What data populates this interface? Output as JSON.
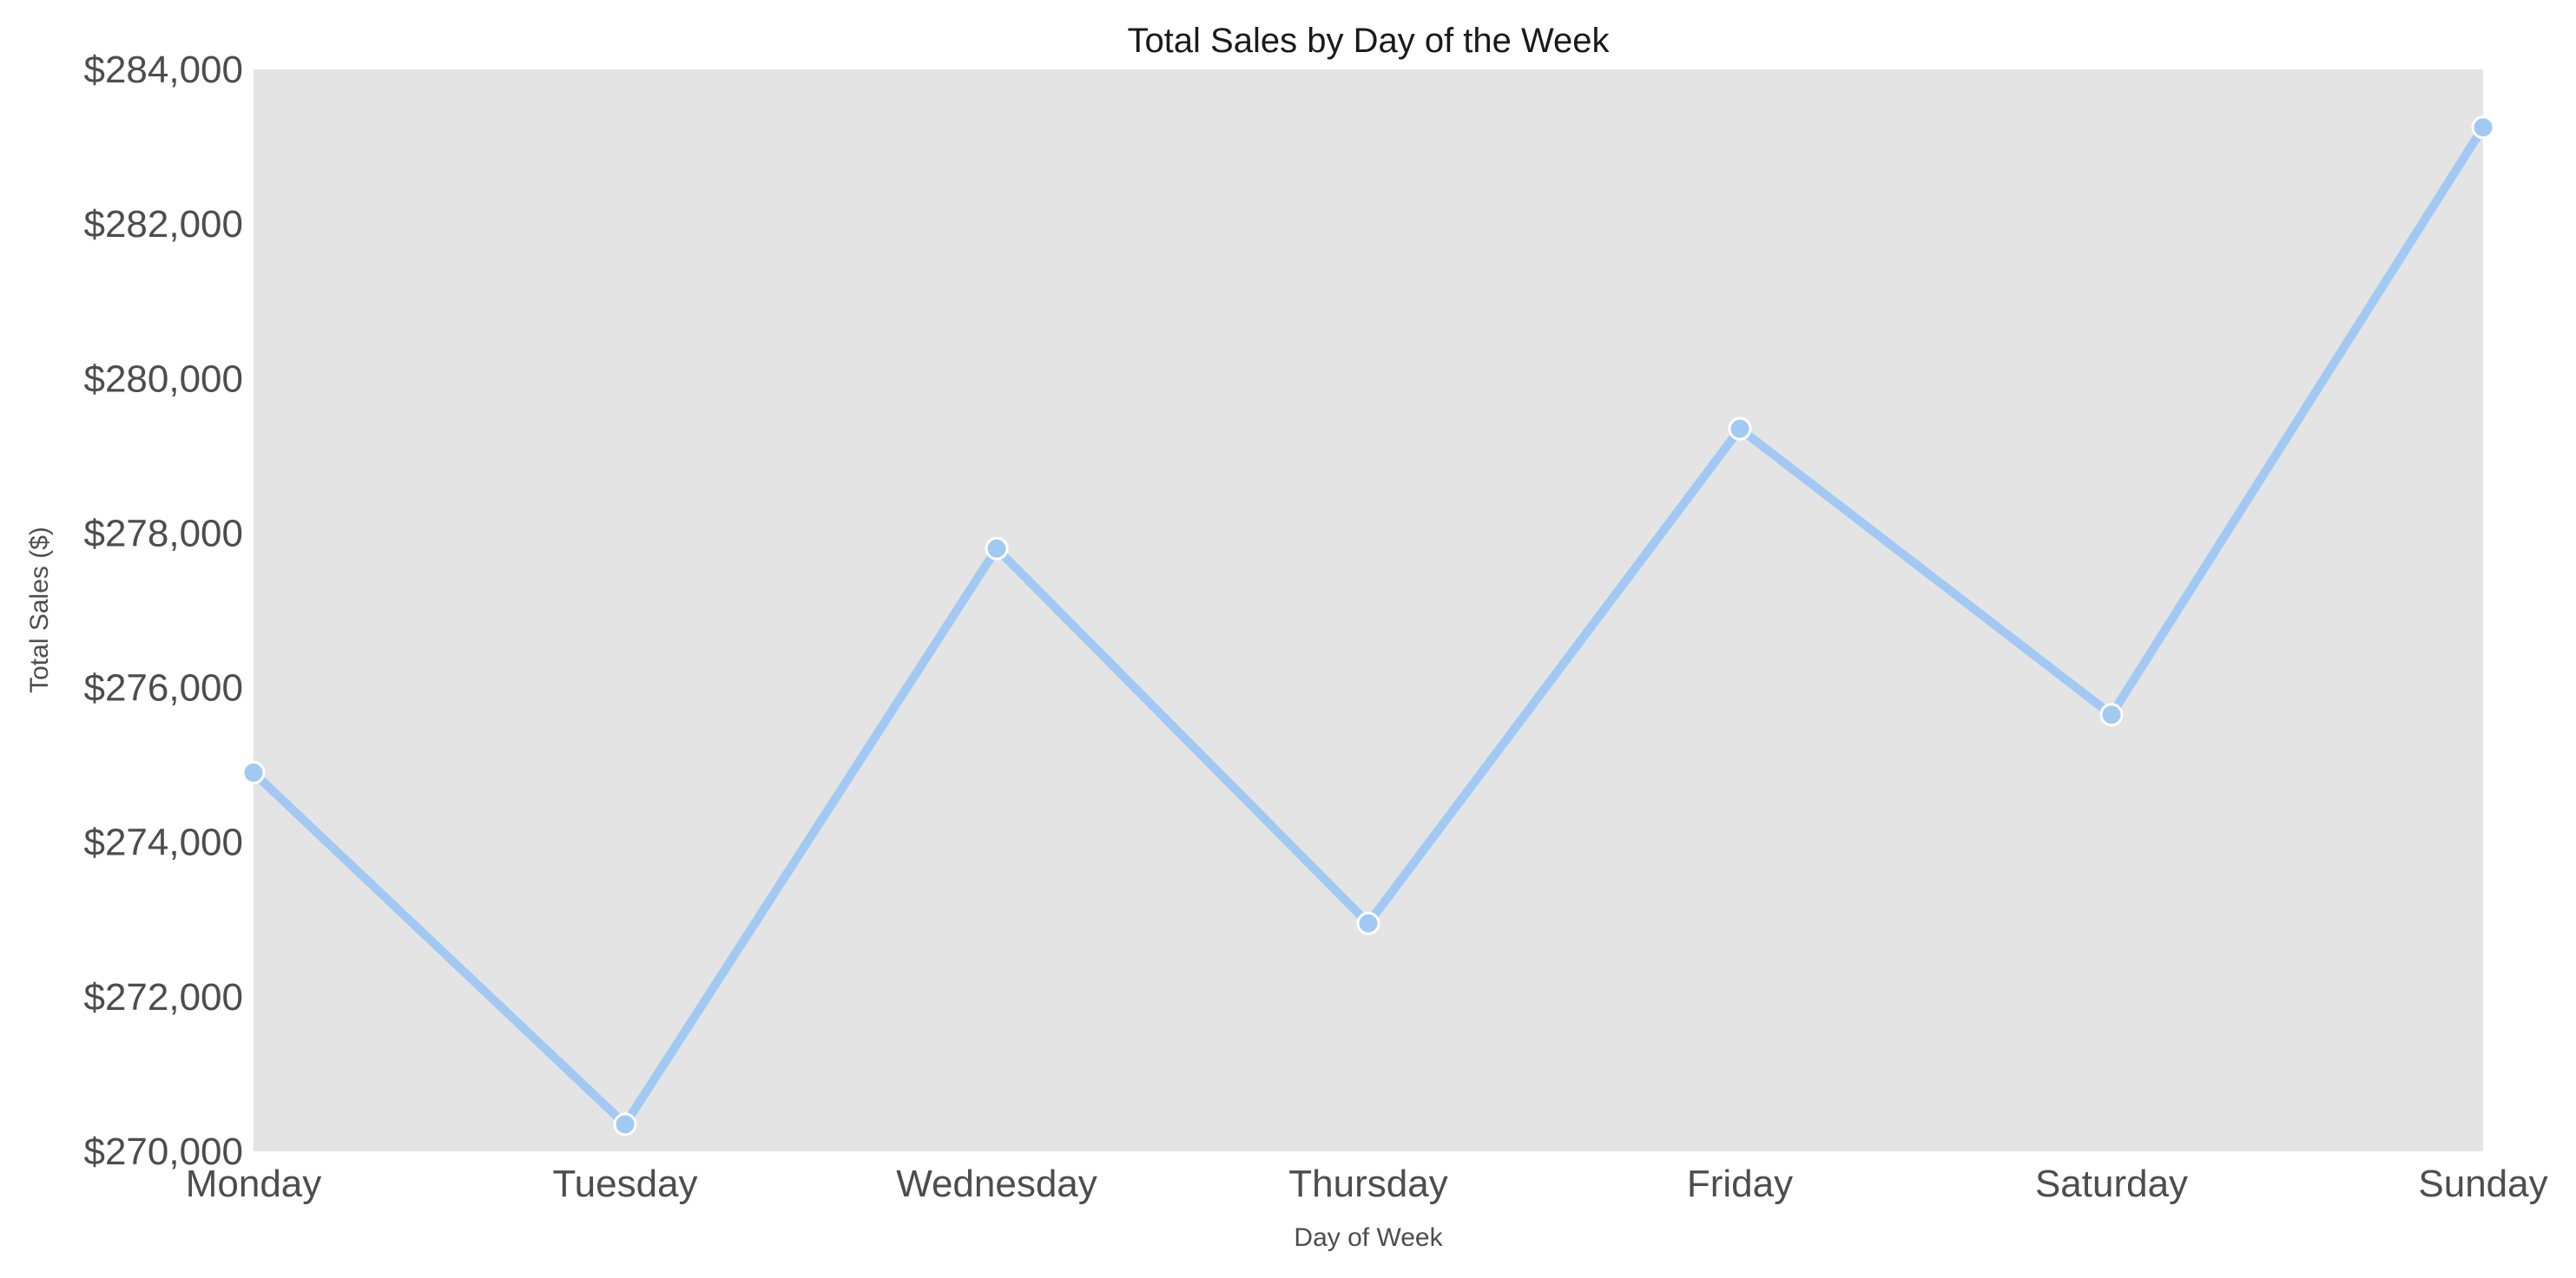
{
  "chart_data": {
    "type": "line",
    "title": "Total Sales by Day of the Week",
    "xlabel": "Day of Week",
    "ylabel": "Total Sales ($)",
    "categories": [
      "Monday",
      "Tuesday",
      "Wednesday",
      "Thursday",
      "Friday",
      "Saturday",
      "Sunday"
    ],
    "values": [
      274900,
      270350,
      277800,
      272950,
      279350,
      275650,
      283250
    ],
    "ylim": [
      270000,
      284000
    ],
    "yticks": [
      270000,
      272000,
      274000,
      276000,
      278000,
      280000,
      282000,
      284000
    ],
    "ytick_labels": [
      "$270,000",
      "$272,000",
      "$274,000",
      "$276,000",
      "$278,000",
      "$280,000",
      "$282,000",
      "$284,000"
    ],
    "grid": false,
    "colors": {
      "plot_background": "#e4e4e4",
      "line": "#a1c9f4",
      "marker_edge": "#ffffff"
    }
  }
}
